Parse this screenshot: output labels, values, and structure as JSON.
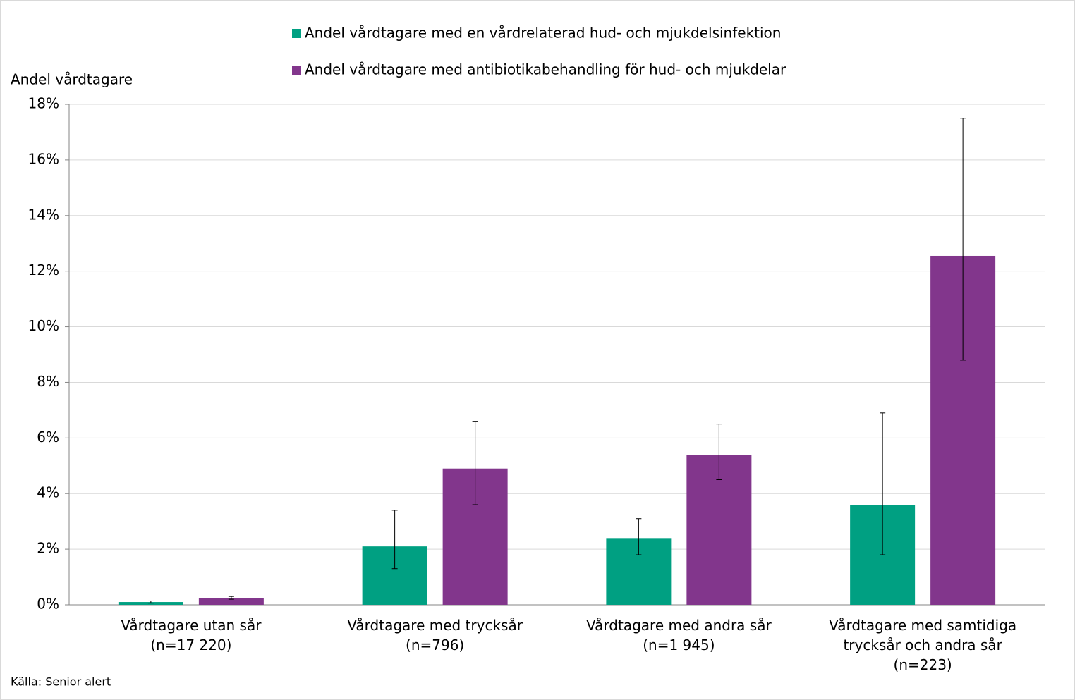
{
  "chart_data": {
    "type": "bar",
    "y_label": "Andel vårdtagare",
    "source": "Källa: Senior alert",
    "categories": [
      "Vårdtagare utan sår\n(n=17 220)",
      "Vårdtagare med trycksår\n(n=796)",
      "Vårdtagare med andra sår\n(n=1 945)",
      "Vårdtagare med samtidiga\ntrycksår och andra sår\n(n=223)"
    ],
    "series": [
      {
        "name": "Andel vårdtagare med en vårdrelaterad hud- och mjukdelsinfektion",
        "color": "#00a082",
        "values": [
          0.1,
          2.1,
          2.4,
          3.6
        ],
        "lower": [
          0.06,
          1.3,
          1.8,
          1.8
        ],
        "upper": [
          0.14,
          3.4,
          3.1,
          6.9
        ]
      },
      {
        "name": "Andel vårdtagare med antibiotikabehandling för hud- och mjukdelar",
        "color": "#82368c",
        "values": [
          0.25,
          4.9,
          5.4,
          12.55
        ],
        "lower": [
          0.2,
          3.6,
          4.5,
          8.8
        ],
        "upper": [
          0.3,
          6.6,
          6.5,
          17.5
        ]
      }
    ],
    "ylim": [
      0,
      18
    ],
    "yticks": [
      {
        "value": 0,
        "label": "0%"
      },
      {
        "value": 2,
        "label": "2%"
      },
      {
        "value": 4,
        "label": "4%"
      },
      {
        "value": 6,
        "label": "6%"
      },
      {
        "value": 8,
        "label": "8%"
      },
      {
        "value": 10,
        "label": "10%"
      },
      {
        "value": 12,
        "label": "12%"
      },
      {
        "value": 14,
        "label": "14%"
      },
      {
        "value": 16,
        "label": "16%"
      },
      {
        "value": 18,
        "label": "18%"
      }
    ],
    "grid": true
  }
}
